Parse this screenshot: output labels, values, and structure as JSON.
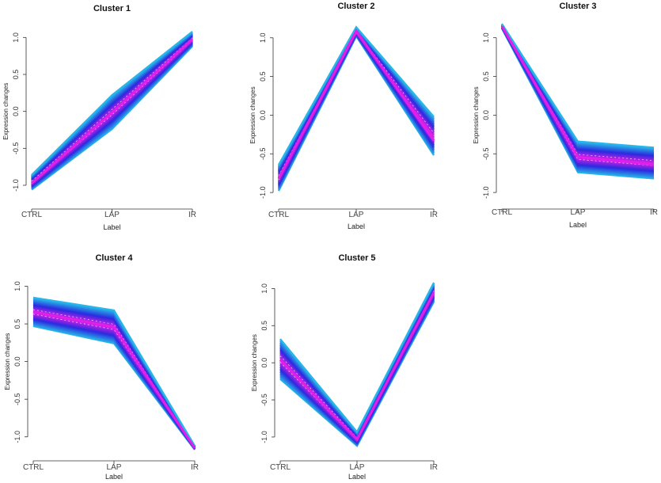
{
  "figure": {
    "background": "#ffffff"
  },
  "palette": {
    "outer": "#29b6e8",
    "mid": "#2a2ae0",
    "core": "#e020e8",
    "dashes": "#ffffff"
  },
  "chart_data": [
    {
      "type": "line",
      "title": "Cluster 1",
      "xlabel": "Label",
      "ylabel": "Expression changes",
      "categories": [
        "CTRL",
        "LAP",
        "IR"
      ],
      "yticks": [
        "-1.0",
        "-0.5",
        "0.0",
        "0.5",
        "1.0"
      ],
      "ylim": [
        -1.15,
        1.1
      ],
      "series": [
        {
          "name": "band-outer-low",
          "values": [
            -1.06,
            -0.24,
            0.88
          ]
        },
        {
          "name": "band-outer-high",
          "values": [
            -0.86,
            0.22,
            1.08
          ]
        },
        {
          "name": "core-mean",
          "values": [
            -0.97,
            -0.02,
            0.98
          ]
        }
      ]
    },
    {
      "type": "line",
      "title": "Cluster 2",
      "xlabel": "Label",
      "ylabel": "Expression changes",
      "categories": [
        "CTRL",
        "LAP",
        "IR"
      ],
      "yticks": [
        "-1.0",
        "-0.5",
        "0.0",
        "0.5",
        "1.0"
      ],
      "ylim": [
        -1.05,
        1.1
      ],
      "series": [
        {
          "name": "band-outer-low",
          "values": [
            -0.98,
            1.02,
            -0.52
          ]
        },
        {
          "name": "band-outer-high",
          "values": [
            -0.64,
            1.14,
            -0.02
          ]
        },
        {
          "name": "core-mean",
          "values": [
            -0.82,
            1.09,
            -0.33
          ]
        }
      ]
    },
    {
      "type": "line",
      "title": "Cluster 3",
      "xlabel": "Label",
      "ylabel": "Expression changes",
      "categories": [
        "CTRL",
        "LAP",
        "IR"
      ],
      "yticks": [
        "-1.0",
        "-0.5",
        "0.0",
        "0.5",
        "1.0"
      ],
      "ylim": [
        -1.05,
        1.15
      ],
      "series": [
        {
          "name": "band-outer-low",
          "values": [
            1.12,
            -0.74,
            -0.82
          ]
        },
        {
          "name": "band-outer-high",
          "values": [
            1.18,
            -0.34,
            -0.42
          ]
        },
        {
          "name": "core-mean",
          "values": [
            1.15,
            -0.54,
            -0.64
          ]
        }
      ]
    },
    {
      "type": "line",
      "title": "Cluster 4",
      "xlabel": "Label",
      "ylabel": "Expression changes",
      "categories": [
        "CTRL",
        "LAP",
        "IR"
      ],
      "yticks": [
        "-1.0",
        "-0.5",
        "0.0",
        "0.5",
        "1.0"
      ],
      "ylim": [
        -1.15,
        1.1
      ],
      "series": [
        {
          "name": "band-outer-low",
          "values": [
            0.47,
            0.24,
            -1.17
          ]
        },
        {
          "name": "band-outer-high",
          "values": [
            0.85,
            0.68,
            -1.12
          ]
        },
        {
          "name": "core-mean",
          "values": [
            0.66,
            0.46,
            -1.15
          ]
        }
      ]
    },
    {
      "type": "line",
      "title": "Cluster 5",
      "xlabel": "Label",
      "ylabel": "Expression changes",
      "categories": [
        "CTRL",
        "LAP",
        "IR"
      ],
      "yticks": [
        "-1.0",
        "-0.5",
        "0.0",
        "0.5",
        "1.0"
      ],
      "ylim": [
        -1.15,
        1.1
      ],
      "series": [
        {
          "name": "band-outer-low",
          "values": [
            -0.22,
            -1.12,
            0.82
          ]
        },
        {
          "name": "band-outer-high",
          "values": [
            0.32,
            -0.93,
            1.08
          ]
        },
        {
          "name": "core-mean",
          "values": [
            0.04,
            -1.03,
            0.95
          ]
        }
      ]
    }
  ]
}
